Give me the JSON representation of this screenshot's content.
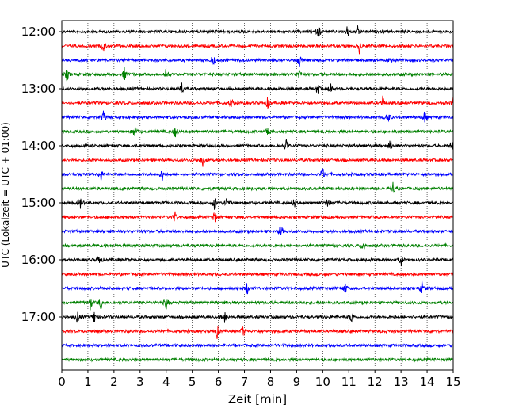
{
  "chart_data": {
    "type": "line",
    "title": "",
    "xlabel": "Zeit  [min]",
    "ylabel": "UTC (Lokalzeit = UTC + 01:00)",
    "xlim": [
      0,
      15
    ],
    "x_ticks": [
      "0",
      "1",
      "2",
      "3",
      "4",
      "5",
      "6",
      "7",
      "8",
      "9",
      "10",
      "11",
      "12",
      "13",
      "14",
      "15"
    ],
    "y_ticks": [
      "12:00",
      "13:00",
      "14:00",
      "15:00",
      "16:00",
      "17:00"
    ],
    "grid": "vertical dotted lines at each minute",
    "colors": [
      "#000000",
      "#ff0000",
      "#0000ff",
      "#008000"
    ],
    "trace_minutes_per_row": 15,
    "rows": [
      {
        "start": "12:00",
        "color": "#000000",
        "events": [
          9.85,
          10.95,
          11.35
        ]
      },
      {
        "start": "12:15",
        "color": "#ff0000",
        "events": [
          1.6,
          11.4
        ]
      },
      {
        "start": "12:30",
        "color": "#0000ff",
        "events": [
          5.8,
          9.1,
          12.6
        ]
      },
      {
        "start": "12:45",
        "color": "#008000",
        "events": [
          0.2,
          2.4,
          4.0,
          9.1
        ]
      },
      {
        "start": "13:00",
        "color": "#000000",
        "events": [
          4.6,
          9.8,
          10.3
        ]
      },
      {
        "start": "13:15",
        "color": "#ff0000",
        "events": [
          6.5,
          7.9,
          12.3,
          15.0
        ]
      },
      {
        "start": "13:30",
        "color": "#0000ff",
        "events": [
          1.6,
          12.5,
          13.9
        ]
      },
      {
        "start": "13:45",
        "color": "#008000",
        "events": [
          2.8,
          4.35,
          7.9
        ]
      },
      {
        "start": "14:00",
        "color": "#000000",
        "events": [
          8.6,
          12.6,
          14.95
        ]
      },
      {
        "start": "14:15",
        "color": "#ff0000",
        "events": [
          5.4
        ]
      },
      {
        "start": "14:30",
        "color": "#0000ff",
        "events": [
          1.5,
          3.85,
          10.0
        ]
      },
      {
        "start": "14:45",
        "color": "#008000",
        "events": [
          12.7
        ]
      },
      {
        "start": "15:00",
        "color": "#000000",
        "events": [
          0.7,
          5.85,
          6.3,
          8.9,
          10.2
        ]
      },
      {
        "start": "15:15",
        "color": "#ff0000",
        "events": [
          4.35,
          5.85
        ]
      },
      {
        "start": "15:30",
        "color": "#0000ff",
        "events": [
          8.4
        ]
      },
      {
        "start": "15:45",
        "color": "#008000",
        "events": [
          11.55
        ]
      },
      {
        "start": "16:00",
        "color": "#000000",
        "events": [
          1.45,
          13.0
        ]
      },
      {
        "start": "16:15",
        "color": "#ff0000",
        "events": []
      },
      {
        "start": "16:30",
        "color": "#0000ff",
        "events": [
          7.1,
          10.85,
          13.8
        ]
      },
      {
        "start": "16:45",
        "color": "#008000",
        "events": [
          1.1,
          1.5,
          4.0
        ]
      },
      {
        "start": "17:00",
        "color": "#000000",
        "events": [
          0.6,
          1.25,
          6.25,
          11.1
        ]
      },
      {
        "start": "17:15",
        "color": "#ff0000",
        "events": [
          5.95,
          6.95
        ]
      },
      {
        "start": "17:30",
        "color": "#0000ff",
        "events": []
      },
      {
        "start": "17:45",
        "color": "#008000",
        "events": []
      }
    ]
  }
}
